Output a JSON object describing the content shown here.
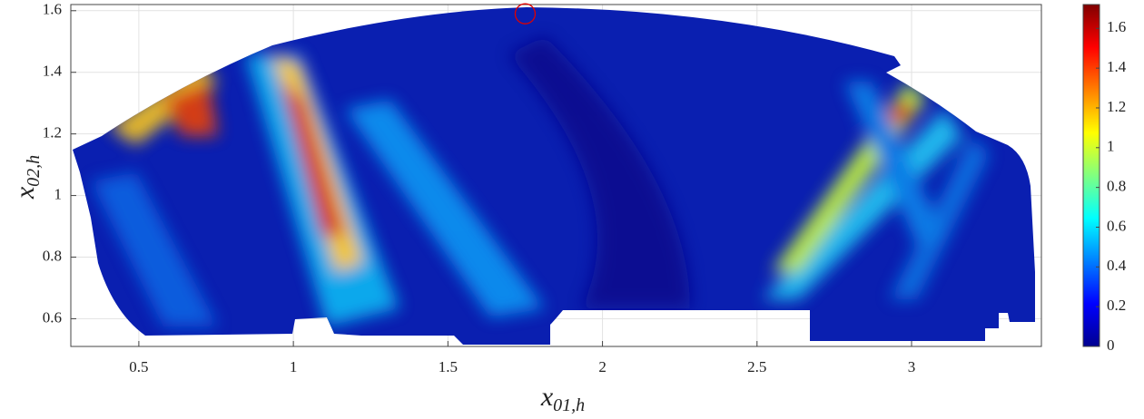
{
  "chart_data": {
    "type": "heatmap",
    "xlabel": {
      "text": "x",
      "subscript": "01,h"
    },
    "ylabel": {
      "text": "x",
      "subscript": "02,h"
    },
    "xlim": [
      0.28,
      3.42
    ],
    "xticks": [
      0.5,
      1,
      1.5,
      2,
      2.5,
      3
    ],
    "ylim": [
      0.51,
      1.62
    ],
    "yticks": [
      0.6,
      0.8,
      1,
      1.2,
      1.4,
      1.6
    ],
    "grid": true,
    "colormap": "jet",
    "clim": [
      0,
      1.72
    ],
    "cticks": [
      0,
      0.2,
      0.4,
      0.6,
      0.8,
      1,
      1.2,
      1.4,
      1.6
    ],
    "marker": {
      "x": 1.75,
      "y": 1.59,
      "color": "#e00000"
    }
  }
}
